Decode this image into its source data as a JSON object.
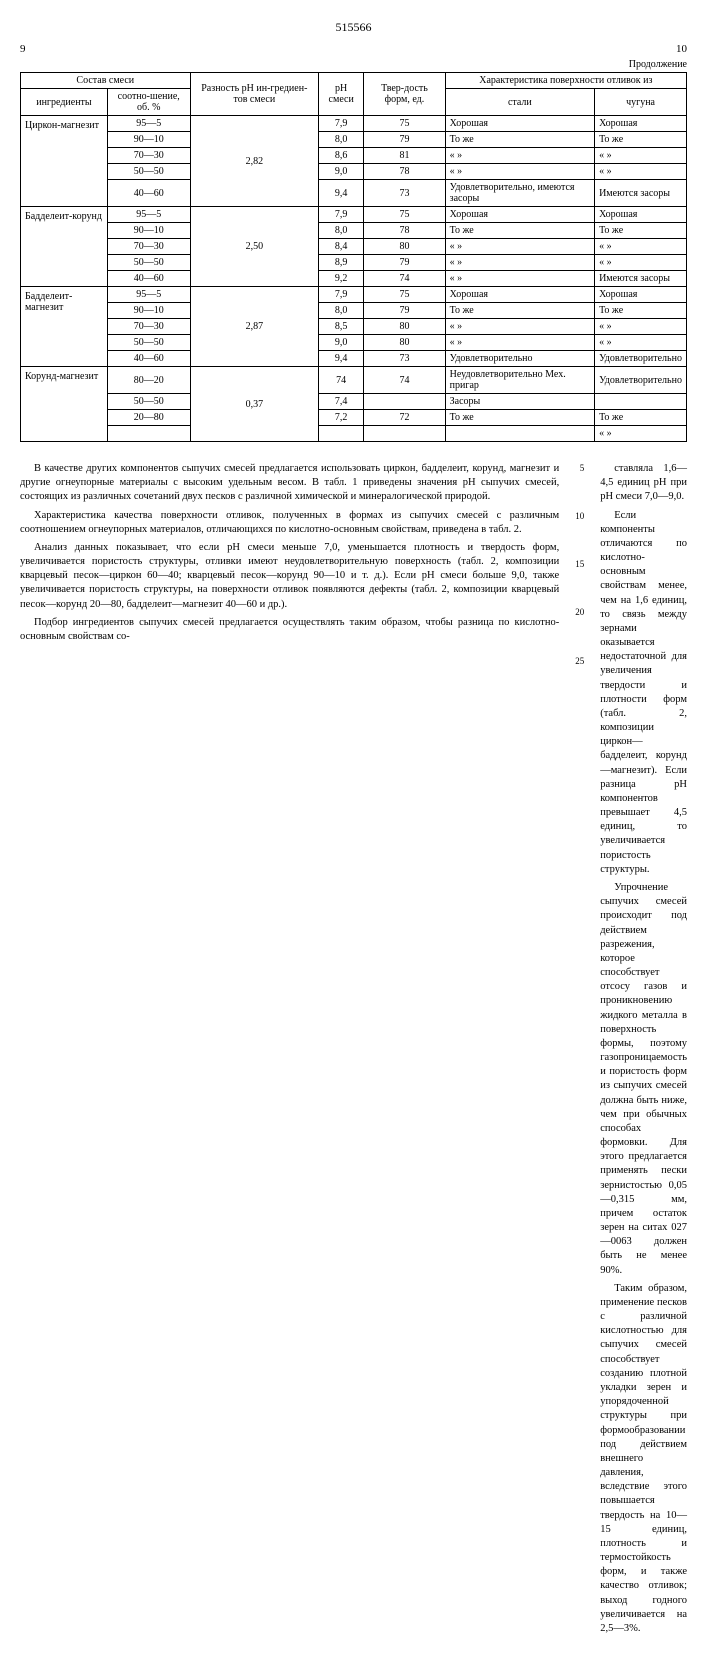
{
  "doc_number": "515566",
  "page_left": "9",
  "page_right": "10",
  "continuation": "Продолжение",
  "table": {
    "headers": {
      "comp": "Состав смеси",
      "ingredients": "ингредиенты",
      "ratio": "соотно-шение, об. %",
      "ph_diff": "Разность pH ин-гредиен-тов смеси",
      "ph_mix": "pH смеси",
      "hardness": "Твер-дость форм, ед.",
      "surface": "Характеристика поверхности отливок из",
      "steel": "стали",
      "iron": "чугуна"
    },
    "groups": [
      {
        "name": "Циркон-магнезит",
        "ph_diff": "2,82",
        "rows": [
          {
            "ratio": "95—5",
            "ph": "7,9",
            "hard": "75",
            "steel": "Хорошая",
            "iron": "Хорошая"
          },
          {
            "ratio": "90—10",
            "ph": "8,0",
            "hard": "79",
            "steel": "То же",
            "iron": "То же"
          },
          {
            "ratio": "70—30",
            "ph": "8,6",
            "hard": "81",
            "steel": "« »",
            "iron": "« »"
          },
          {
            "ratio": "50—50",
            "ph": "9,0",
            "hard": "78",
            "steel": "« »",
            "iron": "« »"
          },
          {
            "ratio": "40—60",
            "ph": "9,4",
            "hard": "73",
            "steel": "Удовлетворительно, имеются засоры",
            "iron": "Имеются засоры"
          }
        ]
      },
      {
        "name": "Бадделеит-корунд",
        "ph_diff": "2,50",
        "rows": [
          {
            "ratio": "95—5",
            "ph": "7,9",
            "hard": "75",
            "steel": "Хорошая",
            "iron": "Хорошая"
          },
          {
            "ratio": "90—10",
            "ph": "8,0",
            "hard": "78",
            "steel": "То же",
            "iron": "То же"
          },
          {
            "ratio": "70—30",
            "ph": "8,4",
            "hard": "80",
            "steel": "« »",
            "iron": "« »"
          },
          {
            "ratio": "50—50",
            "ph": "8,9",
            "hard": "79",
            "steel": "« »",
            "iron": "« »"
          },
          {
            "ratio": "40—60",
            "ph": "9,2",
            "hard": "74",
            "steel": "« »",
            "iron": "Имеются засоры"
          }
        ]
      },
      {
        "name": "Бадделеит-магнезит",
        "ph_diff": "2,87",
        "rows": [
          {
            "ratio": "95—5",
            "ph": "7,9",
            "hard": "75",
            "steel": "Хорошая",
            "iron": "Хорошая"
          },
          {
            "ratio": "90—10",
            "ph": "8,0",
            "hard": "79",
            "steel": "То же",
            "iron": "То же"
          },
          {
            "ratio": "70—30",
            "ph": "8,5",
            "hard": "80",
            "steel": "« »",
            "iron": "« »"
          },
          {
            "ratio": "50—50",
            "ph": "9,0",
            "hard": "80",
            "steel": "« »",
            "iron": "« »"
          },
          {
            "ratio": "40—60",
            "ph": "9,4",
            "hard": "73",
            "steel": "Удовлетворительно",
            "iron": "Удовлетворительно"
          }
        ]
      },
      {
        "name": "Корунд-магнезит",
        "ph_diff": "0,37",
        "rows": [
          {
            "ratio": "80—20",
            "ph": "74",
            "hard": "74",
            "steel": "Неудовлетворительно Мех. пригар",
            "iron": "Удовлетворительно"
          },
          {
            "ratio": "50—50",
            "ph": "7,4",
            "hard": "",
            "steel": "Засоры",
            "iron": ""
          },
          {
            "ratio": "20—80",
            "ph": "7,2",
            "hard": "72",
            "steel": "То же",
            "iron": "То же"
          },
          {
            "ratio": "",
            "ph": "",
            "hard": "",
            "steel": "",
            "iron": "« »"
          }
        ]
      }
    ]
  },
  "line_nums": [
    "5",
    "10",
    "15",
    "20",
    "25"
  ],
  "left_col": [
    "В качестве других компонентов сыпучих смесей предлагается использовать циркон, бадделеит, корунд, магнезит и другие огнеупорные материалы с высоким удельным весом. В табл. 1 приведены значения pH сыпучих смесей, состоящих из различных сочетаний двух песков с различной химической и минералогической природой.",
    "Характеристика качества поверхности отливок, полученных в формах из сыпучих смесей с различным соотношением огнеупорных материалов, отличающихся по кислотно-основным свойствам, приведена в табл. 2.",
    "Анализ данных показывает, что если pH смеси меньше 7,0, уменьшается плотность и твердость форм, увеличивается пористость структуры, отливки имеют неудовлетворительную поверхность (табл. 2, композиции кварцевый песок—циркон 60—40; кварцевый песок—корунд 90—10 и т. д.). Если pH смеси больше 9,0, также увеличивается пористость структуры, на поверхности отливок появляются дефекты (табл. 2, композиции кварцевый песок—корунд 20—80, бадделеит—магнезит 40—60 и др.).",
    "Подбор ингредиентов сыпучих смесей предлагается осуществлять таким образом, чтобы разница по кислотно-основным свойствам со-"
  ],
  "right_col": [
    "ставляла 1,6—4,5 единиц pH при pH смеси 7,0—9,0.",
    "Если компоненты отличаются по кислотно-основным свойствам менее, чем на 1,6 единиц, то связь между зернами оказывается недостаточной для увеличения твердости и плотности форм (табл. 2, композиции циркон—бадделеит, корунд—магнезит). Если разница pH компонентов превышает 4,5 единиц, то увеличивается пористость структуры.",
    "Упрочнение сыпучих смесей происходит под действием разрежения, которое способствует отсосу газов и проникновению жидкого металла в поверхность формы, поэтому газопроницаемость и пористость форм из сыпучих смесей должна быть ниже, чем при обычных способах формовки. Для этого предлагается применять пески зернистостью 0,05—0,315 мм, причем остаток зерен на ситах 027—0063 должен быть не менее 90%.",
    "Таким образом, применение песков с различной кислотностью для сыпучих смесей способствует созданию плотной укладки зерен и упорядоченной структуры при формообразовании под действием внешнего давления, вследствие этого повышается твердость на 10—15 единиц, плотность и термостойкость форм, и также качество отливок; выход годного увеличивается на 2,5—3%."
  ]
}
